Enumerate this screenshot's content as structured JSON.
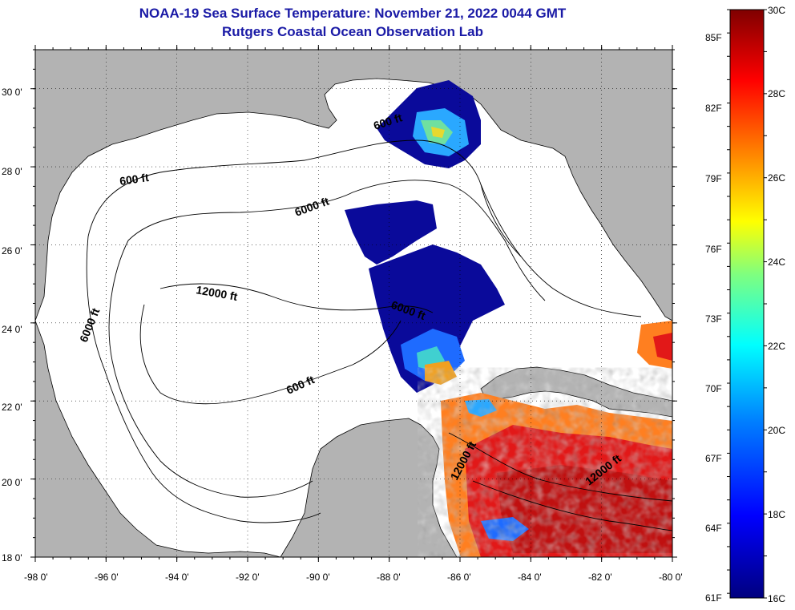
{
  "title": {
    "line1": "NOAA-19 Sea Surface Temperature:  November 21, 2022 0044 GMT",
    "line2": "Rutgers Coastal Ocean Observation Lab"
  },
  "axes": {
    "lon_labels": [
      "-98 0'",
      "-96 0'",
      "-94 0'",
      "-92 0'",
      "-90 0'",
      "-88 0'",
      "-86 0'",
      "-84 0'",
      "-82 0'",
      "-80 0'"
    ],
    "lat_labels": [
      "30 0'",
      "28 0'",
      "26 0'",
      "24 0'",
      "22 0'",
      "20 0'",
      "18 0'"
    ],
    "lon_range": [
      -98,
      -80
    ],
    "lat_range": [
      18,
      31
    ]
  },
  "contour_labels": [
    {
      "text": "600 ft"
    },
    {
      "text": "600 ft"
    },
    {
      "text": "6000 ft"
    },
    {
      "text": "12000 ft"
    },
    {
      "text": "6000 ft"
    },
    {
      "text": "600 ft"
    },
    {
      "text": "6000 ft"
    },
    {
      "text": "12000 ft"
    },
    {
      "text": "12000 ft"
    }
  ],
  "colorbar": {
    "left_labels": [
      "85F",
      "82F",
      "79F",
      "76F",
      "73F",
      "70F",
      "67F",
      "64F",
      "61F"
    ],
    "right_labels": [
      "30C",
      "28C",
      "26C",
      "24C",
      "22C",
      "20C",
      "18C",
      "16C"
    ],
    "range_c": [
      16,
      30
    ],
    "colors": [
      "#00007f",
      "#0000ff",
      "#007fff",
      "#00ffff",
      "#7fff7f",
      "#ffff00",
      "#ff7f00",
      "#ff0000",
      "#7f0000"
    ]
  },
  "colors": {
    "land": "#b3b3b3",
    "ocean_no_data": "#ffffff",
    "title": "#1a1aa6"
  }
}
